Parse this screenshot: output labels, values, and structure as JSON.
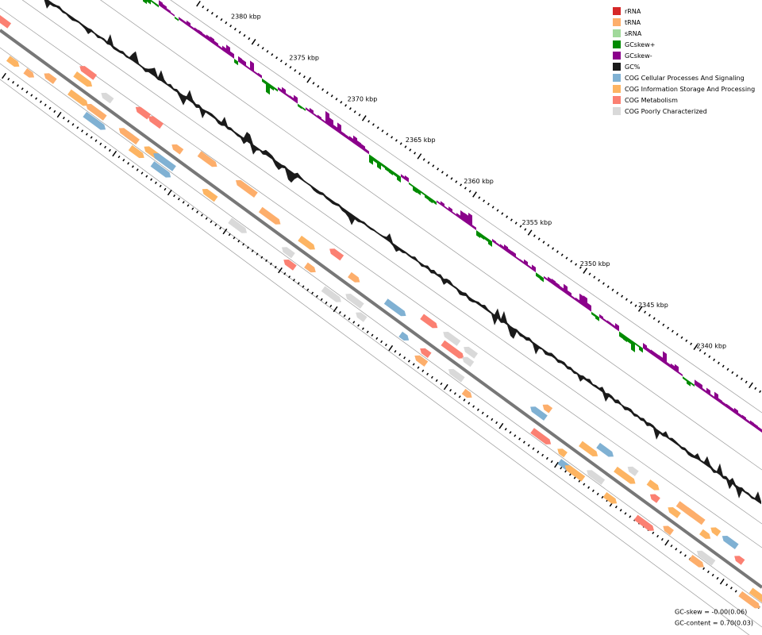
{
  "legend": {
    "items": [
      {
        "label": "rRNA",
        "color": "#d62728"
      },
      {
        "label": "tRNA",
        "color": "#fdae6b"
      },
      {
        "label": "sRNA",
        "color": "#a1d99b"
      },
      {
        "label": "GCskew+",
        "color": "#008b00"
      },
      {
        "label": "GCskew-",
        "color": "#8b008b"
      },
      {
        "label": "GC%",
        "color": "#1a1a1a"
      },
      {
        "label": "COG Cellular Processes And Signaling",
        "color": "#80b1d3"
      },
      {
        "label": "COG Information Storage And Processing",
        "color": "#fdb462"
      },
      {
        "label": "COG Metabolism",
        "color": "#fb8072"
      },
      {
        "label": "COG Poorly Characterized",
        "color": "#d9d9d9"
      }
    ]
  },
  "ticks": [
    "2380 kbp",
    "2375 kbp",
    "2370 kbp",
    "2365 kbp",
    "2360 kbp",
    "2355 kbp",
    "2350 kbp",
    "2345 kbp",
    "2340 kbp"
  ],
  "footer": [
    "GC-skew = -0.00(0.06)",
    "GC-content = 0.70(0.03)"
  ]
}
